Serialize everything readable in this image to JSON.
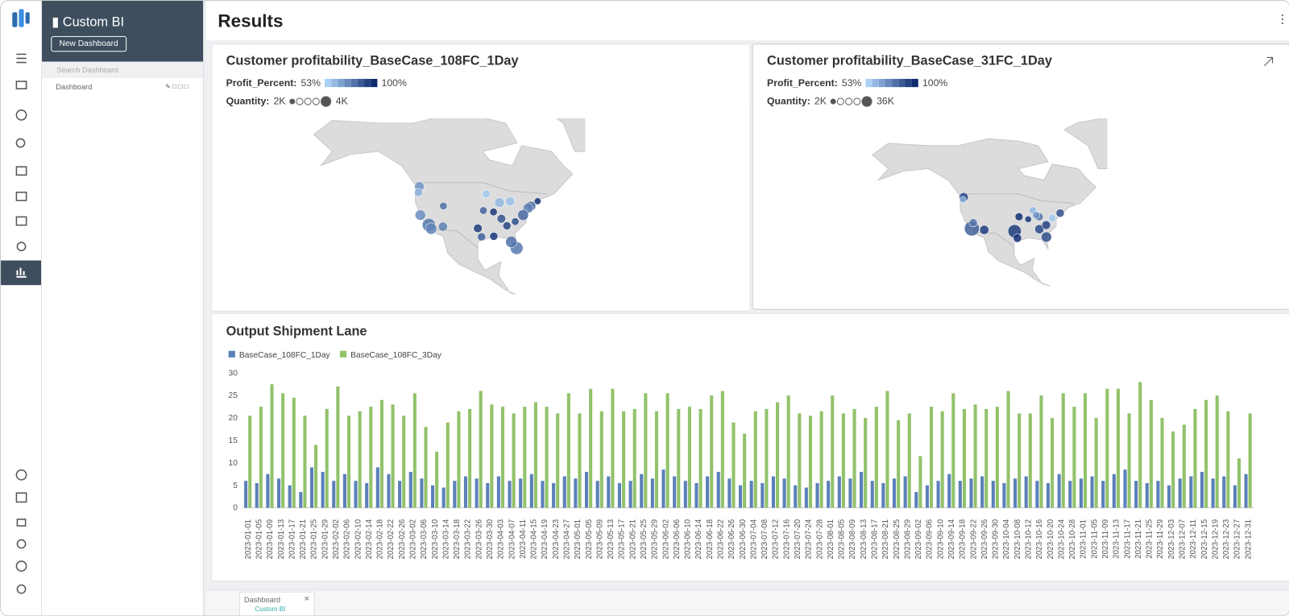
{
  "app": {
    "title": "Custom BI",
    "new_button": "New Dashboard",
    "search_placeholder": "Search Dashboard",
    "tree_item": "Dashboard"
  },
  "page_title": "Results",
  "maps": [
    {
      "title": "Customer profitability_BaseCase_108FC_1Day",
      "legend": {
        "color_label": "Profit_Percent:",
        "color_min": "53%",
        "color_max": "100%",
        "size_label": "Quantity:",
        "size_min": "2K",
        "size_max": "4K"
      },
      "color_range": [
        53,
        100
      ],
      "size_range": [
        2000,
        4000
      ],
      "points": [
        {
          "lon": -122.3,
          "lat": 47.6,
          "profit": 70,
          "quantity": 2600
        },
        {
          "lon": -122.7,
          "lat": 45.5,
          "profit": 62,
          "quantity": 2300
        },
        {
          "lon": -118.2,
          "lat": 34.0,
          "profit": 78,
          "quantity": 4000
        },
        {
          "lon": -117.2,
          "lat": 32.7,
          "profit": 74,
          "quantity": 3200
        },
        {
          "lon": -121.9,
          "lat": 37.5,
          "profit": 72,
          "quantity": 2900
        },
        {
          "lon": -112.1,
          "lat": 33.4,
          "profit": 76,
          "quantity": 2500
        },
        {
          "lon": -111.9,
          "lat": 40.7,
          "profit": 80,
          "quantity": 2200
        },
        {
          "lon": -97.0,
          "lat": 32.8,
          "profit": 95,
          "quantity": 2400
        },
        {
          "lon": -95.4,
          "lat": 29.8,
          "profit": 85,
          "quantity": 2300
        },
        {
          "lon": -80.2,
          "lat": 25.8,
          "profit": 78,
          "quantity": 3800
        },
        {
          "lon": -82.5,
          "lat": 28.0,
          "profit": 80,
          "quantity": 3200
        },
        {
          "lon": -87.6,
          "lat": 41.9,
          "profit": 60,
          "quantity": 2700
        },
        {
          "lon": -84.4,
          "lat": 33.7,
          "profit": 92,
          "quantity": 2300
        },
        {
          "lon": -90.2,
          "lat": 38.6,
          "profit": 96,
          "quantity": 2200
        },
        {
          "lon": -86.8,
          "lat": 36.2,
          "profit": 88,
          "quantity": 2400
        },
        {
          "lon": -80.8,
          "lat": 35.2,
          "profit": 90,
          "quantity": 2200
        },
        {
          "lon": -74.0,
          "lat": 40.7,
          "profit": 83,
          "quantity": 2600
        },
        {
          "lon": -71.1,
          "lat": 42.4,
          "profit": 98,
          "quantity": 2100
        },
        {
          "lon": -75.2,
          "lat": 40.0,
          "profit": 75,
          "quantity": 2800
        },
        {
          "lon": -77.4,
          "lat": 37.5,
          "profit": 82,
          "quantity": 3000
        },
        {
          "lon": -83.0,
          "lat": 42.3,
          "profit": 58,
          "quantity": 2500
        },
        {
          "lon": -93.3,
          "lat": 45.0,
          "profit": 55,
          "quantity": 2300
        },
        {
          "lon": -94.6,
          "lat": 39.1,
          "profit": 84,
          "quantity": 2200
        },
        {
          "lon": -90.1,
          "lat": 30.0,
          "profit": 97,
          "quantity": 2300
        }
      ]
    },
    {
      "title": "Customer profitability_BaseCase_31FC_1Day",
      "legend": {
        "color_label": "Profit_Percent:",
        "color_min": "53%",
        "color_max": "100%",
        "size_label": "Quantity:",
        "size_min": "2K",
        "size_max": "36K"
      },
      "color_range": [
        53,
        100
      ],
      "size_range": [
        2000,
        36000
      ],
      "points": [
        {
          "lon": -122.3,
          "lat": 47.6,
          "profit": 92,
          "quantity": 8000
        },
        {
          "lon": -122.7,
          "lat": 46.5,
          "profit": 62,
          "quantity": 3000
        },
        {
          "lon": -118.2,
          "lat": 34.0,
          "profit": 85,
          "quantity": 36000
        },
        {
          "lon": -117.5,
          "lat": 36.5,
          "profit": 78,
          "quantity": 6000
        },
        {
          "lon": -112.0,
          "lat": 33.4,
          "profit": 95,
          "quantity": 8000
        },
        {
          "lon": -96.8,
          "lat": 32.8,
          "profit": 95,
          "quantity": 26000
        },
        {
          "lon": -95.4,
          "lat": 29.8,
          "profit": 98,
          "quantity": 6000
        },
        {
          "lon": -80.9,
          "lat": 30.3,
          "profit": 90,
          "quantity": 12000
        },
        {
          "lon": -87.6,
          "lat": 41.9,
          "profit": 60,
          "quantity": 4000
        },
        {
          "lon": -84.4,
          "lat": 33.7,
          "profit": 92,
          "quantity": 8000
        },
        {
          "lon": -84.5,
          "lat": 39.1,
          "profit": 80,
          "quantity": 5000
        },
        {
          "lon": -81.0,
          "lat": 35.5,
          "profit": 93,
          "quantity": 7000
        },
        {
          "lon": -74.0,
          "lat": 40.7,
          "profit": 88,
          "quantity": 6000
        },
        {
          "lon": -78.0,
          "lat": 38.5,
          "profit": 55,
          "quantity": 5000
        },
        {
          "lon": -94.6,
          "lat": 39.1,
          "profit": 99,
          "quantity": 5000
        },
        {
          "lon": -86.0,
          "lat": 39.8,
          "profit": 70,
          "quantity": 4000
        },
        {
          "lon": -90.0,
          "lat": 38.0,
          "profit": 97,
          "quantity": 3000
        }
      ]
    }
  ],
  "chart_data": {
    "type": "bar",
    "title": "Output Shipment Lane",
    "legend": "top-left",
    "categories": [
      "2023-01-01",
      "2023-01-05",
      "2023-01-09",
      "2023-01-13",
      "2023-01-17",
      "2023-01-21",
      "2023-01-25",
      "2023-01-29",
      "2023-02-02",
      "2023-02-06",
      "2023-02-10",
      "2023-02-14",
      "2023-02-18",
      "2023-02-22",
      "2023-02-26",
      "2023-03-02",
      "2023-03-06",
      "2023-03-10",
      "2023-03-14",
      "2023-03-18",
      "2023-03-22",
      "2023-03-26",
      "2023-03-30",
      "2023-04-03",
      "2023-04-07",
      "2023-04-11",
      "2023-04-15",
      "2023-04-19",
      "2023-04-23",
      "2023-04-27",
      "2023-05-01",
      "2023-05-05",
      "2023-05-09",
      "2023-05-13",
      "2023-05-17",
      "2023-05-21",
      "2023-05-25",
      "2023-05-29",
      "2023-06-02",
      "2023-06-06",
      "2023-06-10",
      "2023-06-14",
      "2023-06-18",
      "2023-06-22",
      "2023-06-26",
      "2023-06-30",
      "2023-07-04",
      "2023-07-08",
      "2023-07-12",
      "2023-07-16",
      "2023-07-20",
      "2023-07-24",
      "2023-07-28",
      "2023-08-01",
      "2023-08-05",
      "2023-08-09",
      "2023-08-13",
      "2023-08-17",
      "2023-08-21",
      "2023-08-25",
      "2023-08-29",
      "2023-09-02",
      "2023-09-06",
      "2023-09-10",
      "2023-09-14",
      "2023-09-18",
      "2023-09-22",
      "2023-09-26",
      "2023-09-30",
      "2023-10-04",
      "2023-10-08",
      "2023-10-12",
      "2023-10-16",
      "2023-10-20",
      "2023-10-24",
      "2023-10-28",
      "2023-11-01",
      "2023-11-05",
      "2023-11-09",
      "2023-11-13",
      "2023-11-17",
      "2023-11-21",
      "2023-11-25",
      "2023-11-29",
      "2023-12-03",
      "2023-12-07",
      "2023-12-11",
      "2023-12-15",
      "2023-12-19",
      "2023-12-23",
      "2023-12-27",
      "2023-12-31"
    ],
    "series": [
      {
        "name": "BaseCase_108FC_1Day",
        "color": "#5b80b9",
        "values": [
          6,
          5.5,
          7.5,
          6.5,
          5,
          3.5,
          9,
          8,
          6,
          7.5,
          6,
          5.5,
          9,
          7.5,
          6,
          8,
          6.5,
          5,
          4.5,
          6,
          7,
          6.5,
          5.5,
          7,
          6,
          6.5,
          7.5,
          6,
          5.5,
          7,
          6.5,
          8,
          6,
          7,
          5.5,
          6,
          7.5,
          6.5,
          8.5,
          7,
          6,
          5.5,
          7,
          8,
          6.5,
          5,
          6,
          5.5,
          7,
          6.5,
          5,
          4.5,
          5.5,
          6,
          7,
          6.5,
          8,
          6,
          5.5,
          6.5,
          7,
          3.5,
          5,
          6,
          7.5,
          6,
          6.5,
          7,
          6,
          5.5,
          6.5,
          7,
          6,
          5.5,
          7.5,
          6,
          6.5,
          7,
          6,
          7.5,
          8.5,
          6,
          5.5,
          6,
          5,
          6.5,
          7,
          8,
          6.5,
          7,
          5,
          7.5
        ]
      },
      {
        "name": "BaseCase_108FC_3Day",
        "color": "#92c26b",
        "values": [
          20.5,
          22.5,
          27.5,
          25.5,
          24.5,
          20.5,
          14,
          22,
          27,
          20.5,
          21.5,
          22.5,
          24,
          23,
          20.5,
          25.5,
          18,
          12.5,
          19,
          21.5,
          22,
          26,
          23,
          22.5,
          21,
          22.5,
          23.5,
          22.5,
          21,
          25.5,
          21,
          26.5,
          21.5,
          26.5,
          21.5,
          22,
          25.5,
          21.5,
          25.5,
          22,
          22.5,
          22,
          25,
          26,
          19,
          16.5,
          21.5,
          22,
          23.5,
          25,
          21,
          20.5,
          21.5,
          25,
          21,
          22,
          20,
          22.5,
          26,
          19.5,
          21,
          11.5,
          22.5,
          21.5,
          25.5,
          22,
          23,
          22,
          22.5,
          26,
          21,
          21,
          25,
          20,
          25.5,
          22.5,
          25.5,
          20,
          26.5,
          26.5,
          21,
          28,
          24,
          20,
          17,
          18.5,
          22,
          24,
          25,
          21.5,
          11,
          21
        ]
      }
    ],
    "ylim": [
      0,
      30
    ],
    "yticks": [
      0,
      5,
      10,
      15,
      20,
      25,
      30
    ],
    "grid": false
  },
  "tabs": {
    "name": "Dashboard",
    "sub": "Custom BI"
  }
}
